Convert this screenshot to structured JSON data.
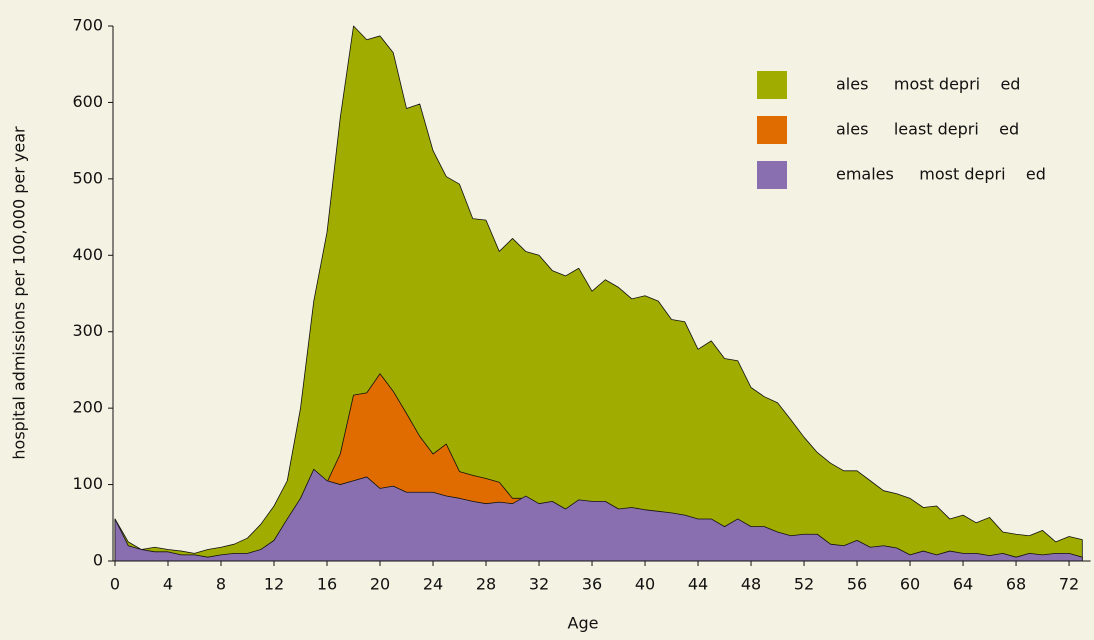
{
  "chart_data": {
    "type": "area",
    "x_label": "Age",
    "y_label": "hospital admissions per 100,000 per year",
    "x": [
      0,
      1,
      2,
      3,
      4,
      5,
      6,
      7,
      8,
      9,
      10,
      11,
      12,
      13,
      14,
      15,
      16,
      17,
      18,
      19,
      20,
      21,
      22,
      23,
      24,
      25,
      26,
      27,
      28,
      29,
      30,
      31,
      32,
      33,
      34,
      35,
      36,
      37,
      38,
      39,
      40,
      41,
      42,
      43,
      44,
      45,
      46,
      47,
      48,
      49,
      50,
      51,
      52,
      53,
      54,
      55,
      56,
      57,
      58,
      59,
      60,
      61,
      62,
      63,
      64,
      65,
      66,
      67,
      68,
      69,
      70,
      71,
      72,
      73
    ],
    "series": [
      {
        "name": "ales     most depri    ed",
        "color": "#a0ac00",
        "values": [
          55,
          25,
          15,
          18,
          15,
          13,
          10,
          15,
          18,
          22,
          30,
          48,
          72,
          105,
          200,
          340,
          430,
          580,
          700,
          682,
          687,
          665,
          592,
          598,
          537,
          503,
          493,
          448,
          446,
          405,
          422,
          405,
          400,
          380,
          373,
          383,
          353,
          368,
          358,
          343,
          347,
          340,
          316,
          313,
          277,
          288,
          265,
          262,
          227,
          215,
          207,
          185,
          162,
          142,
          128,
          118,
          118,
          105,
          92,
          88,
          82,
          70,
          72,
          55,
          60,
          50,
          57,
          38,
          35,
          33,
          40,
          25,
          32,
          28
        ]
      },
      {
        "name": "ales     least depri    ed",
        "color": "#e06c00",
        "values": [
          null,
          null,
          null,
          null,
          null,
          null,
          null,
          null,
          null,
          null,
          null,
          null,
          null,
          null,
          null,
          null,
          103,
          140,
          217,
          220,
          245,
          222,
          193,
          163,
          140,
          153,
          117,
          112,
          108,
          103,
          82,
          82,
          null,
          null,
          null,
          null,
          null,
          null,
          null,
          null,
          null,
          null,
          null,
          null,
          null,
          null,
          null,
          null,
          null,
          null,
          null,
          null,
          null,
          null,
          null,
          null,
          null,
          null,
          null,
          null,
          null,
          null,
          null,
          null,
          null,
          null,
          null,
          null,
          null,
          null,
          null,
          null,
          null,
          null
        ]
      },
      {
        "name": "emales     most depri    ed",
        "color": "#8a6fb0",
        "values": [
          55,
          20,
          15,
          12,
          12,
          8,
          8,
          5,
          8,
          10,
          10,
          15,
          27,
          55,
          82,
          120,
          105,
          100,
          105,
          110,
          95,
          98,
          90,
          90,
          90,
          85,
          82,
          78,
          75,
          77,
          75,
          85,
          75,
          78,
          68,
          80,
          78,
          78,
          68,
          70,
          67,
          65,
          63,
          60,
          55,
          55,
          45,
          55,
          45,
          45,
          38,
          33,
          35,
          35,
          22,
          20,
          27,
          18,
          20,
          17,
          8,
          13,
          8,
          13,
          10,
          10,
          7,
          10,
          5,
          10,
          8,
          10,
          10,
          5
        ]
      }
    ],
    "xlim": [
      0,
      73.4
    ],
    "ylim": [
      0,
      700
    ],
    "xticks": [
      0,
      4,
      8,
      12,
      16,
      20,
      24,
      28,
      32,
      36,
      40,
      44,
      48,
      52,
      56,
      60,
      64,
      68,
      72
    ],
    "yticks": [
      0,
      100,
      200,
      300,
      400,
      500,
      600,
      700
    ],
    "legend": "upper right"
  }
}
